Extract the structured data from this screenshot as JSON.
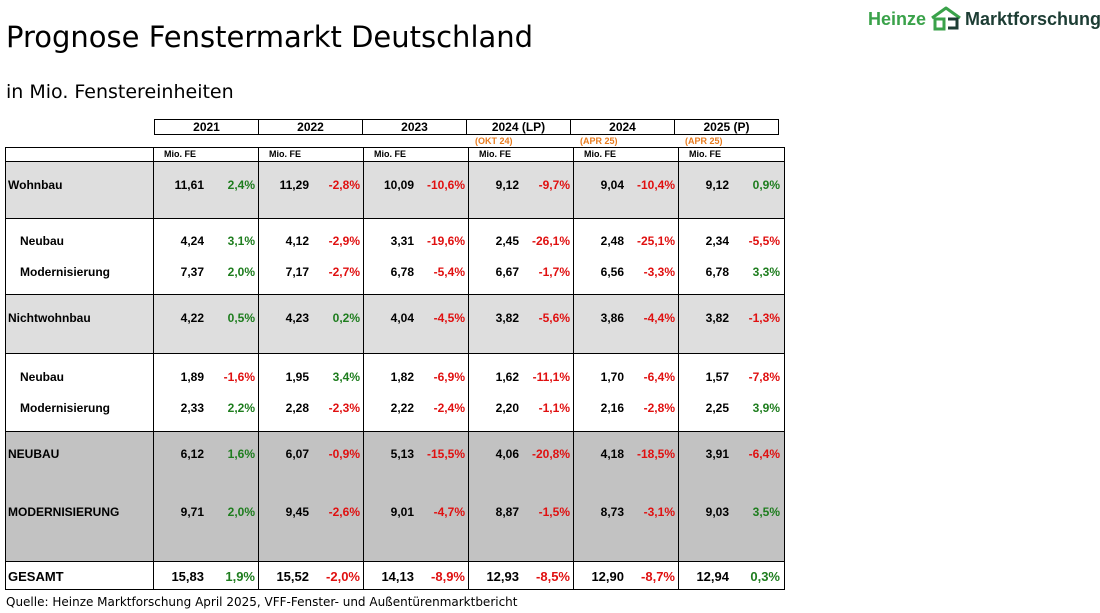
{
  "title": "Prognose Fenstermarkt Deutschland",
  "subtitle": "in Mio. Fenstereinheiten",
  "logo": {
    "brand": "Heinze",
    "suffix": "Marktforschung",
    "brand_color": "#3aa24a",
    "suffix_color": "#1d3d34"
  },
  "source": "Quelle: Heinze Marktforschung April 2025, VFF-Fenster- und Außentürenmarktbericht",
  "colors": {
    "positive": "#1e7d1e",
    "negative": "#e01010",
    "annotation": "#e87b1e"
  },
  "chart_data": {
    "type": "table",
    "columns": [
      {
        "year": "2021",
        "annotation": "",
        "unit": "Mio. FE"
      },
      {
        "year": "2022",
        "annotation": "",
        "unit": "Mio. FE"
      },
      {
        "year": "2023",
        "annotation": "",
        "unit": "Mio. FE"
      },
      {
        "year": "2024 (LP)",
        "annotation": "(OKT 24)",
        "unit": "Mio. FE"
      },
      {
        "year": "2024",
        "annotation": "(APR 25)",
        "unit": "Mio. FE"
      },
      {
        "year": "2025 (P)",
        "annotation": "(APR 25)",
        "unit": "Mio. FE"
      }
    ],
    "rows": [
      {
        "label": "Wohnbau",
        "values": [
          "11,61",
          "11,29",
          "10,09",
          "9,12",
          "9,04",
          "9,12"
        ],
        "changes": [
          "2,4%",
          "-2,8%",
          "-10,6%",
          "-9,7%",
          "-10,4%",
          "0,9%"
        ]
      },
      {
        "label": "Neubau",
        "values": [
          "4,24",
          "4,12",
          "3,31",
          "2,45",
          "2,48",
          "2,34"
        ],
        "changes": [
          "3,1%",
          "-2,9%",
          "-19,6%",
          "-26,1%",
          "-25,1%",
          "-5,5%"
        ]
      },
      {
        "label": "Modernisierung",
        "values": [
          "7,37",
          "7,17",
          "6,78",
          "6,67",
          "6,56",
          "6,78"
        ],
        "changes": [
          "2,0%",
          "-2,7%",
          "-5,4%",
          "-1,7%",
          "-3,3%",
          "3,3%"
        ]
      },
      {
        "label": "Nichtwohnbau",
        "values": [
          "4,22",
          "4,23",
          "4,04",
          "3,82",
          "3,86",
          "3,82"
        ],
        "changes": [
          "0,5%",
          "0,2%",
          "-4,5%",
          "-5,6%",
          "-4,4%",
          "-1,3%"
        ]
      },
      {
        "label": "Neubau",
        "values": [
          "1,89",
          "1,95",
          "1,82",
          "1,62",
          "1,70",
          "1,57"
        ],
        "changes": [
          "-1,6%",
          "3,4%",
          "-6,9%",
          "-11,1%",
          "-6,4%",
          "-7,8%"
        ]
      },
      {
        "label": "Modernisierung",
        "values": [
          "2,33",
          "2,28",
          "2,22",
          "2,20",
          "2,16",
          "2,25"
        ],
        "changes": [
          "2,2%",
          "-2,3%",
          "-2,4%",
          "-1,1%",
          "-2,8%",
          "3,9%"
        ]
      },
      {
        "label": "NEUBAU",
        "values": [
          "6,12",
          "6,07",
          "5,13",
          "4,06",
          "4,18",
          "3,91"
        ],
        "changes": [
          "1,6%",
          "-0,9%",
          "-15,5%",
          "-20,8%",
          "-18,5%",
          "-6,4%"
        ]
      },
      {
        "label": "MODERNISIERUNG",
        "values": [
          "9,71",
          "9,45",
          "9,01",
          "8,87",
          "8,73",
          "9,03"
        ],
        "changes": [
          "2,0%",
          "-2,6%",
          "-4,7%",
          "-1,5%",
          "-3,1%",
          "3,5%"
        ]
      },
      {
        "label": "GESAMT",
        "values": [
          "15,83",
          "15,52",
          "14,13",
          "12,93",
          "12,90",
          "12,94"
        ],
        "changes": [
          "1,9%",
          "-2,0%",
          "-8,9%",
          "-8,5%",
          "-8,7%",
          "0,3%"
        ]
      }
    ]
  }
}
